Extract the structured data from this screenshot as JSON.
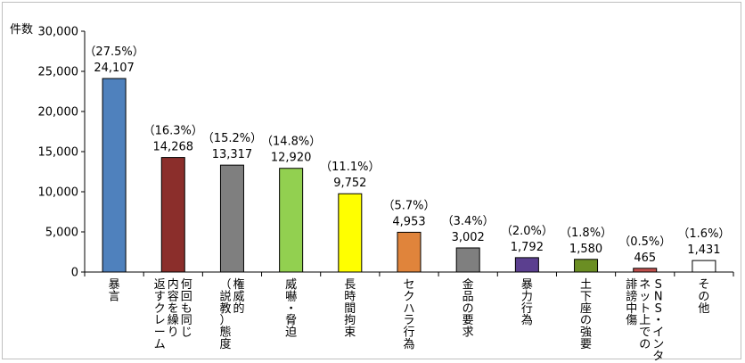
{
  "chart_data": {
    "type": "bar",
    "ylabel": "件数",
    "ylim": [
      0,
      30000
    ],
    "yticks": [
      "0",
      "5,000",
      "10,000",
      "15,000",
      "20,000",
      "25,000",
      "30,000"
    ],
    "grid": false,
    "legend": "none",
    "categories": [
      [
        "暴言"
      ],
      [
        "何回も同じ",
        "内容を繰り",
        "返すクレーム"
      ],
      [
        "権威的",
        "（説教）態度"
      ],
      [
        "威嚇・脅迫"
      ],
      [
        "長時間拘束"
      ],
      [
        "セクハラ行為"
      ],
      [
        "金品の要求"
      ],
      [
        "暴力行為"
      ],
      [
        "土下座の強要"
      ],
      [
        "SNS・インター",
        "ネット上での",
        "誹謗中傷"
      ],
      [
        "その他"
      ]
    ],
    "values": [
      24107,
      14268,
      13317,
      12920,
      9752,
      4953,
      3002,
      1792,
      1580,
      465,
      1431
    ],
    "value_labels": [
      "24,107",
      "14,268",
      "13,317",
      "12,920",
      "9,752",
      "4,953",
      "3,002",
      "1,792",
      "1,580",
      "465",
      "1,431"
    ],
    "percent_labels": [
      "（27.5%）",
      "（16.3%）",
      "（15.2%）",
      "（14.8%）",
      "（11.1%）",
      "（5.7%）",
      "（3.4%）",
      "（2.0%）",
      "（1.8%）",
      "（0.5%）",
      "（1.6%）"
    ],
    "colors": [
      "#4f81bd",
      "#8b2e2b",
      "#7f7f7f",
      "#92d050",
      "#ffff00",
      "#e0843b",
      "#7f7f7f",
      "#5b3f8f",
      "#6b8e23",
      "#c0504d",
      "#ffffff"
    ]
  }
}
